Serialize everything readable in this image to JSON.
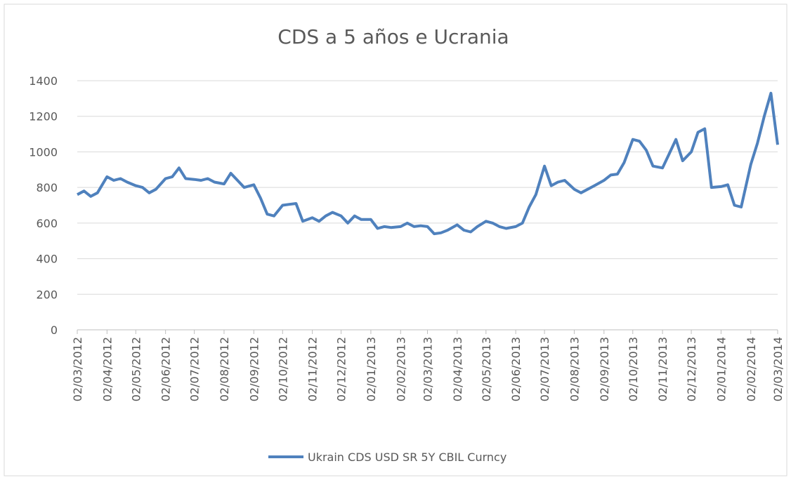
{
  "chart_data": {
    "type": "line",
    "title": "CDS a 5 años e Ucrania",
    "x": [
      "02/03/2012",
      "09/03/2012",
      "16/03/2012",
      "23/03/2012",
      "02/04/2012",
      "09/04/2012",
      "16/04/2012",
      "23/04/2012",
      "02/05/2012",
      "09/05/2012",
      "16/05/2012",
      "23/05/2012",
      "02/06/2012",
      "09/06/2012",
      "16/06/2012",
      "23/06/2012",
      "02/07/2012",
      "09/07/2012",
      "16/07/2012",
      "23/07/2012",
      "02/08/2012",
      "09/08/2012",
      "16/08/2012",
      "23/08/2012",
      "02/09/2012",
      "09/09/2012",
      "16/09/2012",
      "23/09/2012",
      "02/10/2012",
      "09/10/2012",
      "16/10/2012",
      "23/10/2012",
      "02/11/2012",
      "09/11/2012",
      "16/11/2012",
      "23/11/2012",
      "02/12/2012",
      "09/12/2012",
      "16/12/2012",
      "23/12/2012",
      "02/01/2013",
      "09/01/2013",
      "16/01/2013",
      "23/01/2013",
      "02/02/2013",
      "09/02/2013",
      "16/02/2013",
      "23/02/2013",
      "02/03/2013",
      "09/03/2013",
      "16/03/2013",
      "23/03/2013",
      "02/04/2013",
      "09/04/2013",
      "16/04/2013",
      "23/04/2013",
      "02/05/2013",
      "09/05/2013",
      "16/05/2013",
      "23/05/2013",
      "02/06/2013",
      "09/06/2013",
      "16/06/2013",
      "23/06/2013",
      "02/07/2013",
      "09/07/2013",
      "16/07/2013",
      "23/07/2013",
      "02/08/2013",
      "09/08/2013",
      "16/08/2013",
      "23/08/2013",
      "02/09/2013",
      "09/09/2013",
      "16/09/2013",
      "23/09/2013",
      "02/10/2013",
      "09/10/2013",
      "16/10/2013",
      "23/10/2013",
      "02/11/2013",
      "09/11/2013",
      "16/11/2013",
      "23/11/2013",
      "02/12/2013",
      "09/12/2013",
      "16/12/2013",
      "23/12/2013",
      "02/01/2014",
      "09/01/2014",
      "16/01/2014",
      "23/01/2014",
      "02/02/2014",
      "09/02/2014",
      "16/02/2014",
      "23/02/2014",
      "02/03/2014"
    ],
    "series": [
      {
        "name": "Ukrain CDS USD SR 5Y CBIL Curncy",
        "color": "#4f81bd",
        "values": [
          760,
          780,
          750,
          770,
          860,
          840,
          850,
          830,
          810,
          800,
          770,
          790,
          850,
          860,
          910,
          850,
          845,
          840,
          850,
          830,
          820,
          880,
          840,
          800,
          815,
          740,
          650,
          640,
          700,
          705,
          710,
          610,
          630,
          610,
          640,
          660,
          640,
          600,
          640,
          620,
          620,
          570,
          580,
          575,
          580,
          600,
          580,
          585,
          580,
          540,
          545,
          560,
          590,
          560,
          550,
          580,
          610,
          600,
          580,
          570,
          580,
          600,
          690,
          760,
          920,
          810,
          830,
          840,
          790,
          770,
          790,
          810,
          840,
          870,
          875,
          940,
          1070,
          1060,
          1010,
          920,
          910,
          990,
          1070,
          950,
          1000,
          1110,
          1130,
          800,
          805,
          815,
          700,
          690,
          930,
          1050,
          1200,
          1330,
          1040
        ]
      }
    ],
    "xticks": [
      "02/03/2012",
      "02/04/2012",
      "02/05/2012",
      "02/06/2012",
      "02/07/2012",
      "02/08/2012",
      "02/09/2012",
      "02/10/2012",
      "02/11/2012",
      "02/12/2012",
      "02/01/2013",
      "02/02/2013",
      "02/03/2013",
      "02/04/2013",
      "02/05/2013",
      "02/06/2013",
      "02/07/2013",
      "02/08/2013",
      "02/09/2013",
      "02/10/2013",
      "02/11/2013",
      "02/12/2013",
      "02/01/2014",
      "02/02/2014",
      "02/03/2014"
    ],
    "xlim": [
      "02/03/2012",
      "02/03/2014"
    ],
    "ylim": [
      0,
      1400
    ],
    "yticks": [
      0,
      200,
      400,
      600,
      800,
      1000,
      1200,
      1400
    ],
    "grid": true,
    "legend": "bottom"
  }
}
